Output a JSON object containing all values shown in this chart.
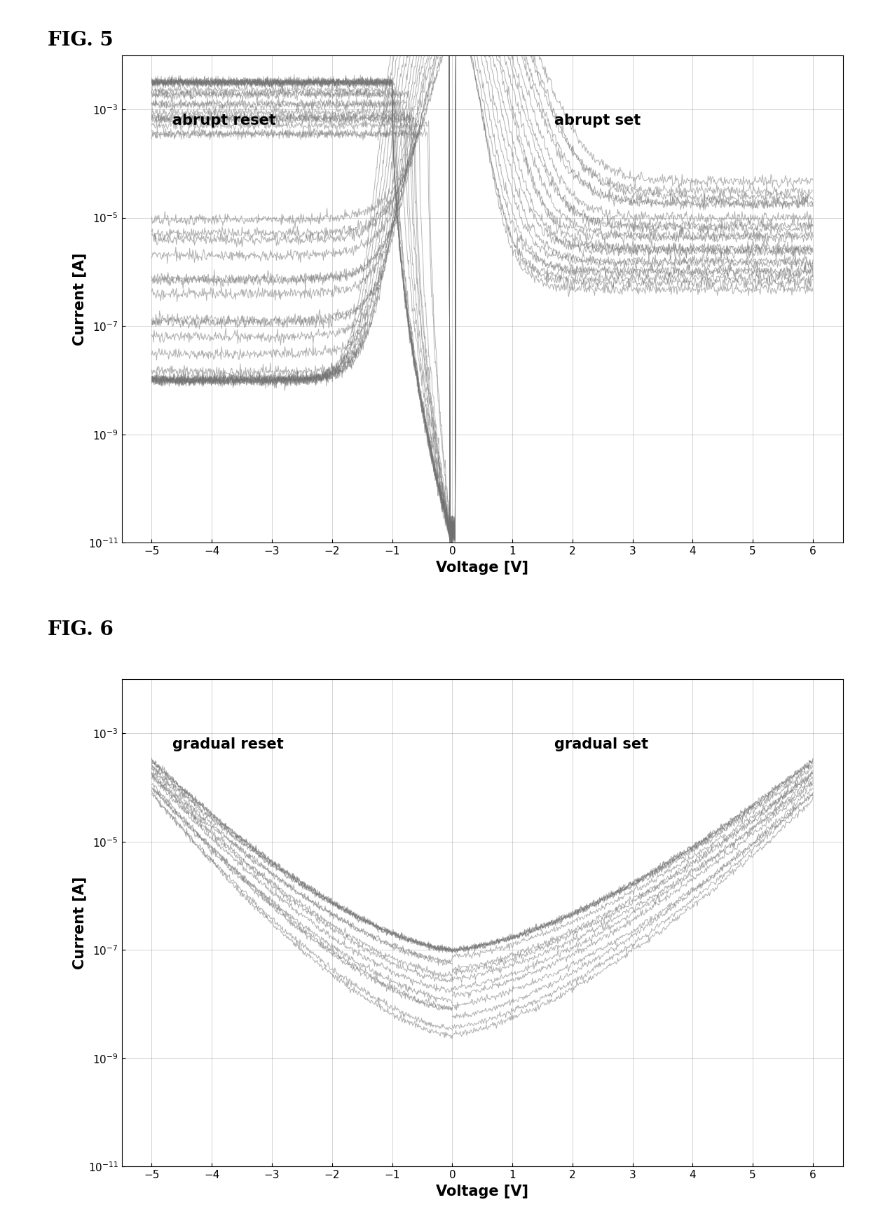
{
  "fig5_title": "FIG. 5",
  "fig6_title": "FIG. 6",
  "xlabel": "Voltage [V]",
  "ylabel": "Current [A]",
  "xlim": [
    -5.5,
    6.5
  ],
  "xticks": [
    -5,
    -4,
    -3,
    -2,
    -1,
    0,
    1,
    2,
    3,
    4,
    5,
    6
  ],
  "ylim_log": [
    -11,
    -2
  ],
  "fig5_label_left": "abrupt reset",
  "fig5_label_right": "abrupt set",
  "fig6_label_left": "gradual reset",
  "fig6_label_right": "gradual set",
  "line_color": "#707070",
  "line_alpha": 0.55,
  "line_width": 0.7,
  "n_cycles_abrupt": 20,
  "n_cycles_gradual": 15,
  "background_color": "#ffffff",
  "grid_color": "#999999",
  "label_fontsize": 15,
  "axis_label_fontsize": 15,
  "tick_label_fontsize": 11,
  "fig_label_fontsize": 20
}
